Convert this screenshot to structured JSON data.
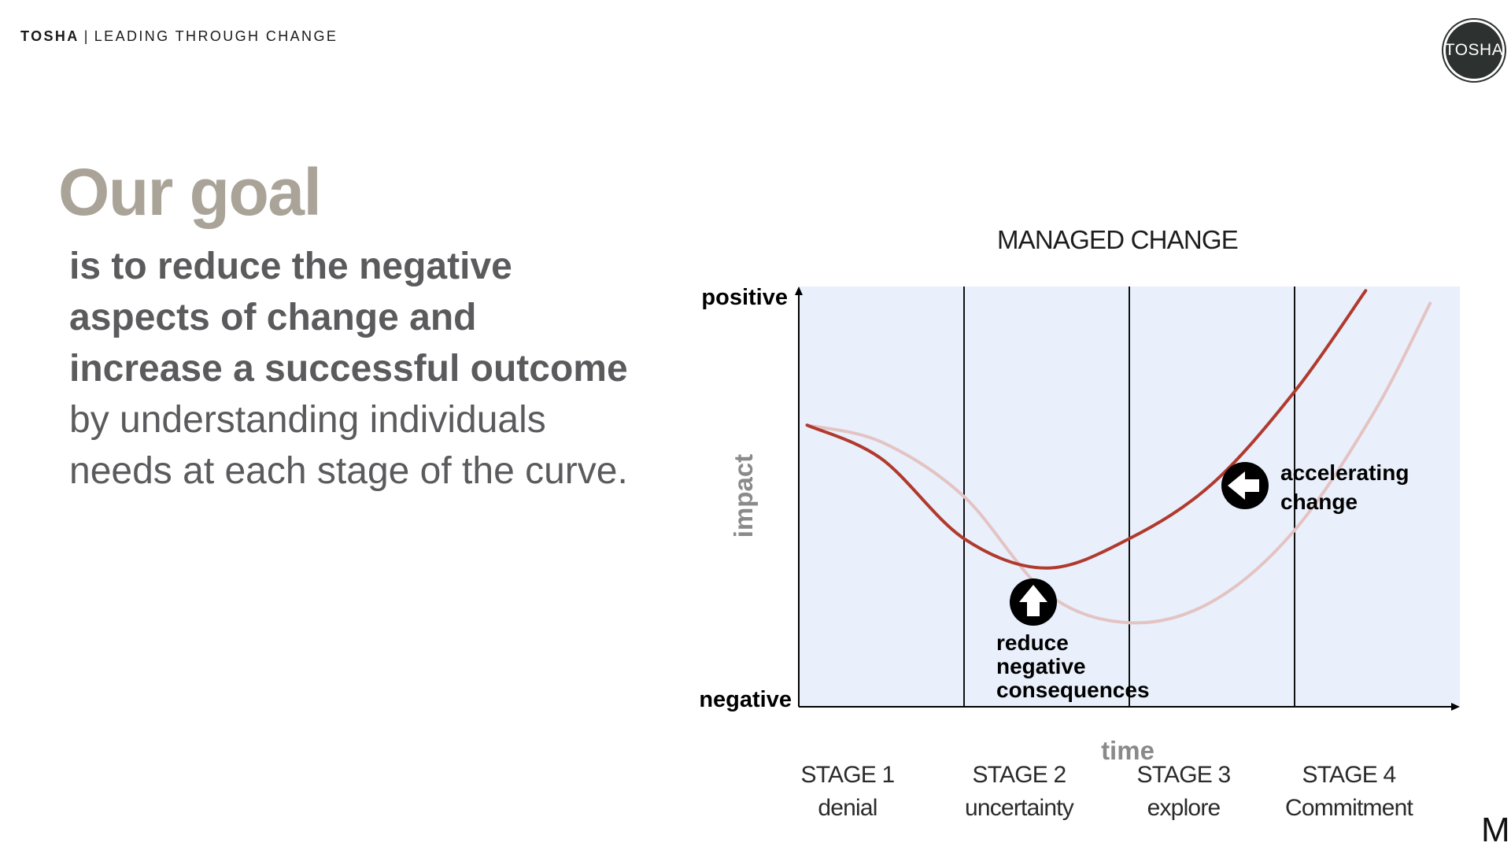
{
  "header": {
    "brand": "TOSHA",
    "separator": "|",
    "tagline": "LEADING THROUGH CHANGE"
  },
  "logo": {
    "text": "TOSHA",
    "background": "#2d312f"
  },
  "goal": {
    "title": "Our goal",
    "lines_bold": [
      "is to reduce the negative",
      "aspects of change and",
      "increase a successful outcome"
    ],
    "lines_light": [
      "by understanding individuals",
      "needs at each stage of the curve."
    ]
  },
  "colors": {
    "title_accent": "#aaa398",
    "body_text": "#5b5b5d",
    "chart_background": "#e9f0fb",
    "managed_curve": "#b03a2e",
    "unmanaged_curve": "#e4c3c3"
  },
  "chart_data": {
    "type": "line",
    "title": "MANAGED CHANGE",
    "xlabel": "time",
    "ylabel": "impact",
    "y_extremes": {
      "top": "positive",
      "bottom": "negative"
    },
    "stages": [
      {
        "name": "STAGE 1",
        "desc": "denial"
      },
      {
        "name": "STAGE 2",
        "desc": "uncertainty"
      },
      {
        "name": "STAGE 3",
        "desc": "explore"
      },
      {
        "name": "STAGE 4",
        "desc": "Commitment"
      }
    ],
    "xlim": [
      0,
      4
    ],
    "ylim": [
      0,
      10
    ],
    "series": [
      {
        "style": "managed",
        "x": [
          0.05,
          0.5,
          1.0,
          1.5,
          2.0,
          2.5,
          3.0,
          3.43
        ],
        "y": [
          6.7,
          5.9,
          4.0,
          3.3,
          4.0,
          5.3,
          7.5,
          9.9
        ]
      },
      {
        "style": "unmanaged",
        "x": [
          0.05,
          0.5,
          1.0,
          1.5,
          2.0,
          2.5,
          3.0,
          3.48,
          3.82
        ],
        "y": [
          6.7,
          6.3,
          5.0,
          2.7,
          2.0,
          2.5,
          4.2,
          7.0,
          9.6
        ]
      }
    ],
    "annotations": [
      {
        "icon": "arrow-up-icon",
        "text": [
          "reduce",
          "negative",
          "consequences"
        ]
      },
      {
        "icon": "arrow-left-icon",
        "text": [
          "accelerating",
          "change"
        ]
      }
    ],
    "grid": false,
    "stage_dividers": true
  },
  "footer": {
    "corner_mark": "M"
  }
}
